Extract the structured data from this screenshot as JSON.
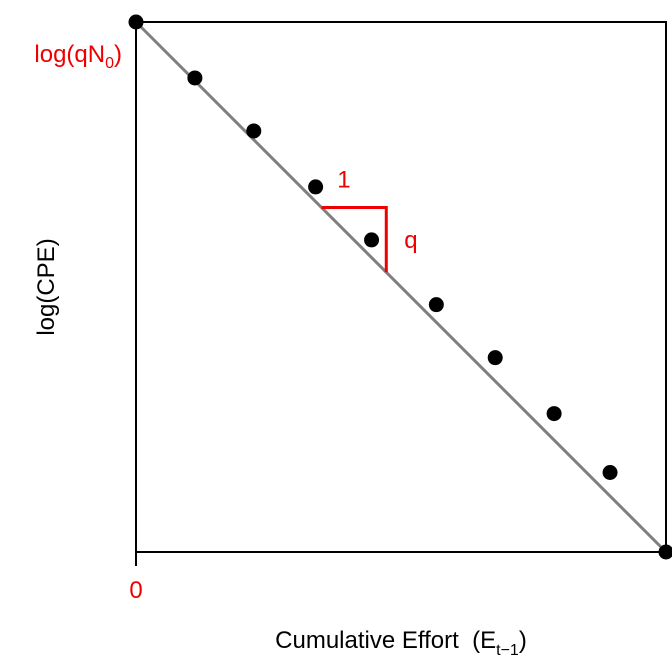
{
  "chart_data": {
    "type": "scatter",
    "title": "",
    "xlabel": "Cumulative  Effort",
    "xlabel_symbol": "E",
    "xlabel_subscript": "t−1",
    "ylabel": "log(CPE)",
    "y_intercept_label_base": "log(qN",
    "y_intercept_label_sub": "0",
    "y_intercept_label_close": ")",
    "x_tick_labels": [
      "0"
    ],
    "slope_run_label": "1",
    "slope_rise_label": "q",
    "xlim": [
      0,
      9
    ],
    "ylim": [
      0,
      9
    ],
    "grid": false,
    "points": [
      {
        "x": 0.0,
        "y": 9.0
      },
      {
        "x": 1.0,
        "y": 8.05
      },
      {
        "x": 2.0,
        "y": 7.15
      },
      {
        "x": 3.05,
        "y": 6.2
      },
      {
        "x": 4.0,
        "y": 5.3
      },
      {
        "x": 5.1,
        "y": 4.2
      },
      {
        "x": 6.1,
        "y": 3.3
      },
      {
        "x": 7.1,
        "y": 2.35
      },
      {
        "x": 8.05,
        "y": 1.35
      },
      {
        "x": 9.0,
        "y": 0.0
      }
    ],
    "fit_line": {
      "x": [
        0,
        9
      ],
      "y": [
        9,
        0
      ]
    },
    "slope_triangle": {
      "x0": 3.15,
      "x1": 4.25
    },
    "colors": {
      "points": "#000000",
      "line": "#808080",
      "annotation": "#ee0000"
    }
  }
}
